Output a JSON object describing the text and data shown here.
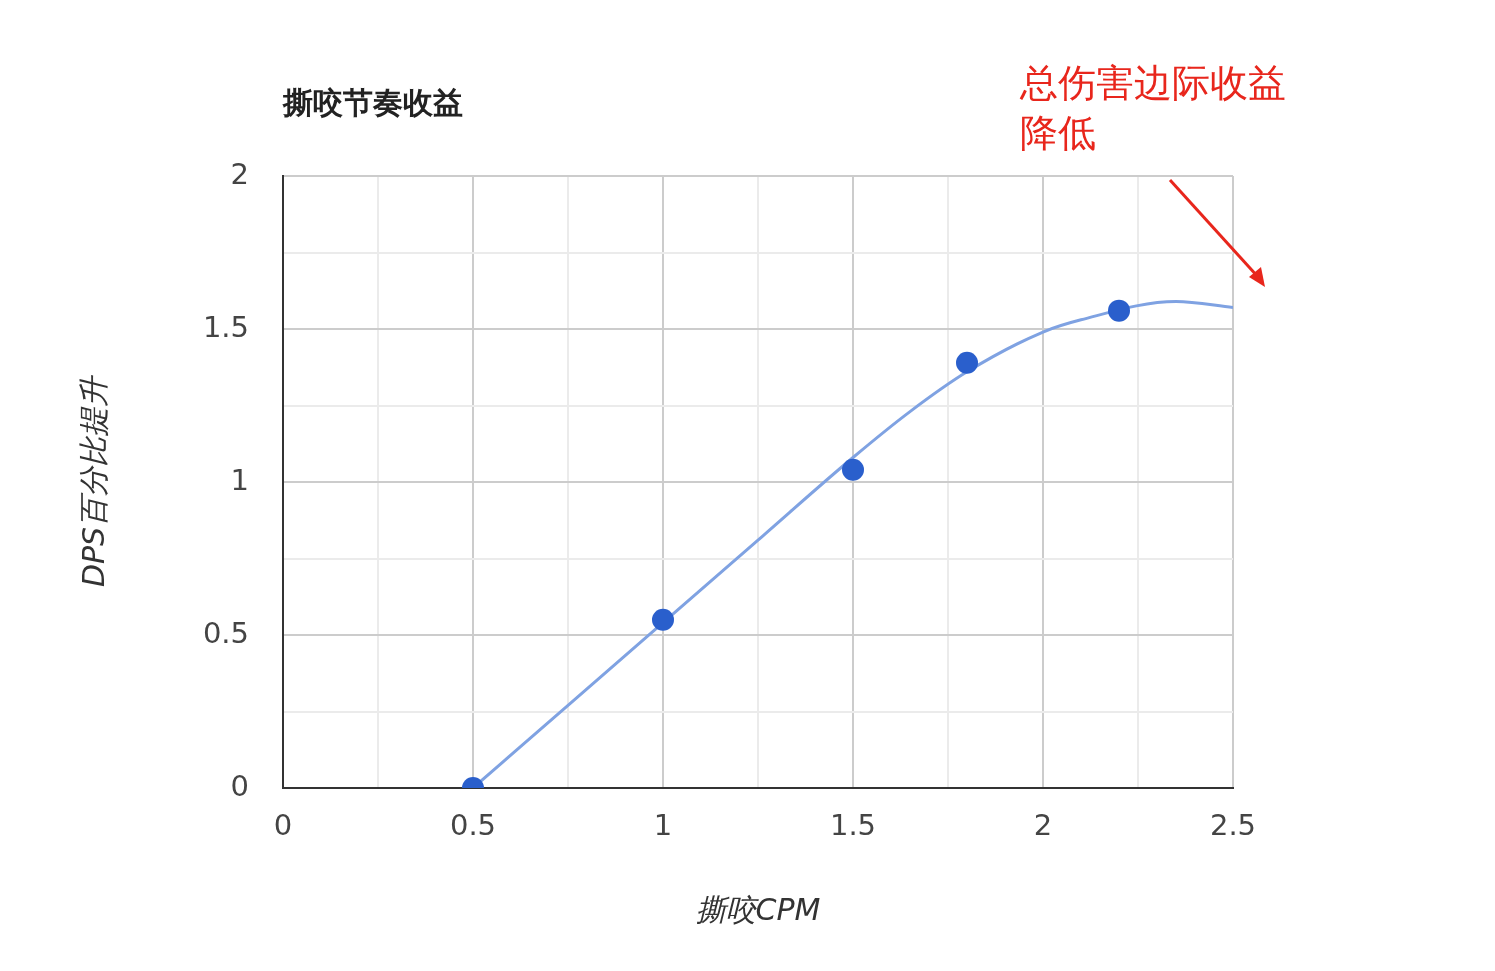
{
  "chart_data": {
    "type": "scatter",
    "title": "撕咬节奏收益",
    "xlabel": "撕咬CPM",
    "ylabel": "DPS百分比提升",
    "annotations": [
      "总伤害边际收益降低"
    ],
    "series": [
      {
        "color": "#2a5fcc",
        "marker": "circle",
        "x": [
          0.5,
          1,
          1.5,
          1.8,
          2.2
        ],
        "values": [
          0,
          0.55,
          1.04,
          1.39,
          1.56
        ]
      },
      {
        "type": "line",
        "color": "#7fa2e2",
        "marker": "none",
        "x": [
          0.5,
          0.75,
          1.25,
          1.5,
          1.65,
          1.8,
          2,
          2.1,
          2.35,
          2.5
        ],
        "values": [
          0,
          0.27,
          0.81,
          1.08,
          1.23,
          1.36,
          1.49,
          1.53,
          1.59,
          1.57
        ]
      }
    ],
    "xlim": [
      0,
      2.5
    ],
    "ylim": [
      0,
      2
    ],
    "xticks": [
      0,
      {
        "value": 0.25,
        "label": null
      },
      0.5,
      {
        "value": 0.75,
        "label": null
      },
      1,
      {
        "value": 1.25,
        "label": null
      },
      1.5,
      {
        "value": 1.75,
        "label": null
      },
      2,
      {
        "value": 2.25,
        "label": null
      },
      2.5
    ],
    "yticks": [
      0,
      {
        "value": 0.25,
        "label": null
      },
      0.5,
      {
        "value": 0.75,
        "label": null
      },
      1,
      {
        "value": 1.25,
        "label": null
      },
      1.5,
      {
        "value": 1.75,
        "label": null
      },
      2
    ],
    "grid": true,
    "legend": false
  }
}
